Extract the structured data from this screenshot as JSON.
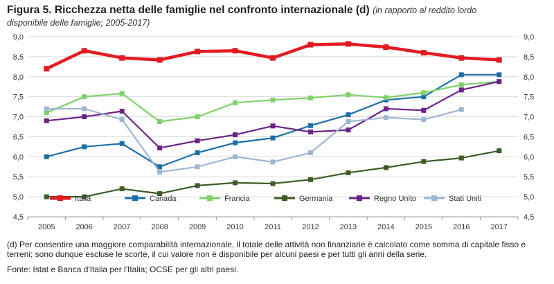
{
  "header": {
    "title": "Figura 5. Ricchezza netta delle famiglie nel confronto internazionale (d)",
    "subtitle_line1": "(in rapporto al reddito lordo",
    "subtitle_line2": "disponibile delle famiglie; 2005-2017)"
  },
  "note": "(d) Per consentire una maggiore comparabilità internazionale, il totale delle attività non finanziarie è calcolato come somma di capitale fisso e terreni; sono dunque escluse le scorte, il cui valore non è disponibile per alcuni paesi e per tutti gli anni della serie.",
  "source": "Fonte: Istat e Banca d'Italia per l'Italia; OCSE per gli altri paesi.",
  "chart_data": {
    "type": "line",
    "title": "Ricchezza netta delle famiglie nel confronto internazionale",
    "xlabel": "",
    "ylabel": "",
    "ylim": [
      4.5,
      9.0
    ],
    "yticks": [
      "4,5",
      "5,0",
      "5,5",
      "6,0",
      "6,5",
      "7,0",
      "7,5",
      "8,0",
      "8,5",
      "9,0"
    ],
    "ytick_values": [
      4.5,
      5.0,
      5.5,
      6.0,
      6.5,
      7.0,
      7.5,
      8.0,
      8.5,
      9.0
    ],
    "grid": true,
    "legend_position": "bottom",
    "categories": [
      "2005",
      "2006",
      "2007",
      "2008",
      "2009",
      "2010",
      "2011",
      "2012",
      "2013",
      "2014",
      "2015",
      "2016",
      "2017"
    ],
    "series": [
      {
        "name": "Italia",
        "color": "#e31b23",
        "width": 4.5,
        "values": [
          8.2,
          8.65,
          8.47,
          8.42,
          8.63,
          8.65,
          8.47,
          8.8,
          8.82,
          8.74,
          8.6,
          8.47,
          8.42
        ]
      },
      {
        "name": "Canada",
        "color": "#1b6fa8",
        "width": 2.2,
        "values": [
          6.0,
          6.25,
          6.33,
          5.75,
          6.1,
          6.35,
          6.47,
          6.78,
          7.05,
          7.42,
          7.5,
          8.05,
          8.05
        ]
      },
      {
        "name": "Francia",
        "color": "#7fd16a",
        "width": 2.2,
        "values": [
          7.1,
          7.5,
          7.58,
          6.88,
          7.0,
          7.35,
          7.42,
          7.47,
          7.55,
          7.48,
          7.6,
          7.8,
          7.88
        ]
      },
      {
        "name": "Germania",
        "color": "#3d5c27",
        "width": 2.2,
        "values": [
          5.0,
          5.0,
          5.2,
          5.08,
          5.28,
          5.35,
          5.33,
          5.43,
          5.6,
          5.73,
          5.88,
          5.97,
          6.15
        ]
      },
      {
        "name": "Regno Unito",
        "color": "#6a2388",
        "width": 2.2,
        "values": [
          6.9,
          7.0,
          7.14,
          6.22,
          6.4,
          6.55,
          6.77,
          6.62,
          6.67,
          7.2,
          7.16,
          7.67,
          7.88
        ]
      },
      {
        "name": "Stati Uniti",
        "color": "#9fb6d2",
        "width": 2.2,
        "values": [
          7.2,
          7.2,
          6.93,
          5.62,
          5.75,
          6.0,
          5.87,
          6.1,
          6.88,
          6.98,
          6.93,
          7.18,
          null
        ]
      }
    ]
  }
}
